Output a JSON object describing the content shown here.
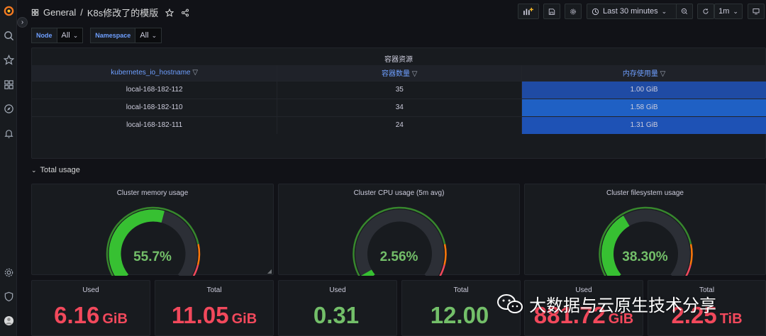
{
  "breadcrumb": {
    "folder": "General",
    "separator": "/",
    "dashboard": "K8s修改了的模版"
  },
  "toolbar": {
    "time_range": "Last 30 minutes",
    "refresh_interval": "1m"
  },
  "variables": [
    {
      "label": "Node",
      "value": "All"
    },
    {
      "label": "Namespace",
      "value": "All"
    }
  ],
  "table_panel": {
    "title": "容器资源",
    "columns": [
      "kubernetes_io_hostname",
      "容器数量",
      "内存使用量"
    ],
    "rows": [
      {
        "host": "local-168-182-112",
        "count": "35",
        "mem": "1.00 GiB",
        "mem_color": "#1f4ba4"
      },
      {
        "host": "local-168-182-110",
        "count": "34",
        "mem": "1.58 GiB",
        "mem_color": "#1f60c4"
      },
      {
        "host": "local-168-182-111",
        "count": "24",
        "mem": "1.31 GiB",
        "mem_color": "#1e52b5"
      }
    ]
  },
  "row_header": "Total usage",
  "gauges": [
    {
      "title": "Cluster memory usage",
      "value": "55.7%",
      "fraction": 0.557
    },
    {
      "title": "Cluster CPU usage (5m avg)",
      "value": "2.56%",
      "fraction": 0.0256
    },
    {
      "title": "Cluster filesystem usage",
      "value": "38.30%",
      "fraction": 0.383
    }
  ],
  "stats": [
    {
      "title": "Used",
      "value": "6.16",
      "unit": "GiB",
      "color": "#f2495c"
    },
    {
      "title": "Total",
      "value": "11.05",
      "unit": "GiB",
      "color": "#f2495c"
    },
    {
      "title": "Used",
      "value": "0.31",
      "unit": "",
      "color": "#73bf69"
    },
    {
      "title": "Total",
      "value": "12.00",
      "unit": "",
      "color": "#73bf69"
    },
    {
      "title": "Used",
      "value": "881.72",
      "unit": "GiB",
      "color": "#f2495c"
    },
    {
      "title": "Total",
      "value": "2.25",
      "unit": "TiB",
      "color": "#f2495c"
    }
  ],
  "watermark": "大数据与云原生技术分享",
  "colors": {
    "green": "#37872d",
    "orange": "#ff780a",
    "red": "#f2495c",
    "accent": "#6e9fff"
  }
}
